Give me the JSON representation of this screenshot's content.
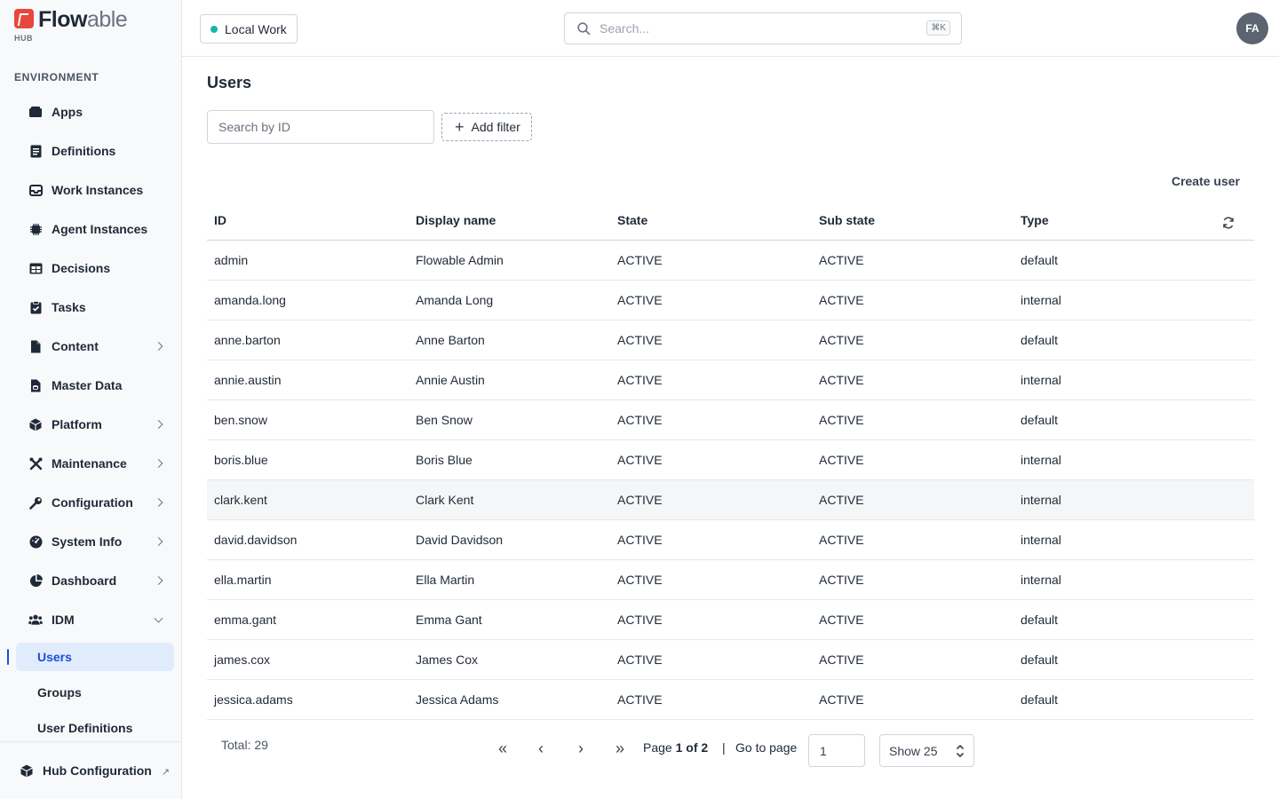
{
  "brand": {
    "name_bold": "Flow",
    "name_light": "able",
    "sub": "HUB"
  },
  "sidebar": {
    "section_label": "ENVIRONMENT",
    "items": [
      {
        "label": "Apps",
        "icon": "apps-icon",
        "expandable": false
      },
      {
        "label": "Definitions",
        "icon": "definitions-icon",
        "expandable": false
      },
      {
        "label": "Work Instances",
        "icon": "inbox-icon",
        "expandable": false
      },
      {
        "label": "Agent Instances",
        "icon": "chip-icon",
        "expandable": false
      },
      {
        "label": "Decisions",
        "icon": "table-icon",
        "expandable": false
      },
      {
        "label": "Tasks",
        "icon": "clipboard-check-icon",
        "expandable": false
      },
      {
        "label": "Content",
        "icon": "document-icon",
        "expandable": true
      },
      {
        "label": "Master Data",
        "icon": "database-file-icon",
        "expandable": false
      },
      {
        "label": "Platform",
        "icon": "cube-icon",
        "expandable": true
      },
      {
        "label": "Maintenance",
        "icon": "tools-icon",
        "expandable": true
      },
      {
        "label": "Configuration",
        "icon": "wrench-icon",
        "expandable": true
      },
      {
        "label": "System Info",
        "icon": "gauge-icon",
        "expandable": true
      },
      {
        "label": "Dashboard",
        "icon": "pie-chart-icon",
        "expandable": true
      },
      {
        "label": "IDM",
        "icon": "users-icon",
        "expandable": true,
        "expanded": true
      }
    ],
    "sub_items": [
      {
        "label": "Users",
        "active": true
      },
      {
        "label": "Groups",
        "active": false
      },
      {
        "label": "User Definitions",
        "active": false
      }
    ],
    "hub_config_label": "Hub Configuration"
  },
  "topbar": {
    "workspace_label": "Local Work",
    "workspace_status_color": "#14b8a6",
    "search_placeholder": "Search...",
    "search_shortcut": "⌘K",
    "avatar_initials": "FA"
  },
  "main": {
    "title": "Users",
    "id_search_placeholder": "Search by ID",
    "add_filter_label": "Add filter",
    "create_user_label": "Create user",
    "columns": [
      "ID",
      "Display name",
      "State",
      "Sub state",
      "Type"
    ],
    "rows": [
      [
        "admin",
        "Flowable Admin",
        "ACTIVE",
        "ACTIVE",
        "default"
      ],
      [
        "amanda.long",
        "Amanda Long",
        "ACTIVE",
        "ACTIVE",
        "internal"
      ],
      [
        "anne.barton",
        "Anne Barton",
        "ACTIVE",
        "ACTIVE",
        "default"
      ],
      [
        "annie.austin",
        "Annie Austin",
        "ACTIVE",
        "ACTIVE",
        "internal"
      ],
      [
        "ben.snow",
        "Ben Snow",
        "ACTIVE",
        "ACTIVE",
        "default"
      ],
      [
        "boris.blue",
        "Boris Blue",
        "ACTIVE",
        "ACTIVE",
        "internal"
      ],
      [
        "clark.kent",
        "Clark Kent",
        "ACTIVE",
        "ACTIVE",
        "internal"
      ],
      [
        "david.davidson",
        "David Davidson",
        "ACTIVE",
        "ACTIVE",
        "internal"
      ],
      [
        "ella.martin",
        "Ella Martin",
        "ACTIVE",
        "ACTIVE",
        "internal"
      ],
      [
        "emma.gant",
        "Emma Gant",
        "ACTIVE",
        "ACTIVE",
        "default"
      ],
      [
        "james.cox",
        "James Cox",
        "ACTIVE",
        "ACTIVE",
        "default"
      ],
      [
        "jessica.adams",
        "Jessica Adams",
        "ACTIVE",
        "ACTIVE",
        "default"
      ]
    ],
    "highlighted_row": 6
  },
  "pagination": {
    "total_label": "Total: 29",
    "page_prefix": "Page",
    "page_current_of": "1 of 2",
    "separator": "|",
    "goto_label": "Go to page",
    "goto_value": "1",
    "show_label": "Show 25"
  }
}
